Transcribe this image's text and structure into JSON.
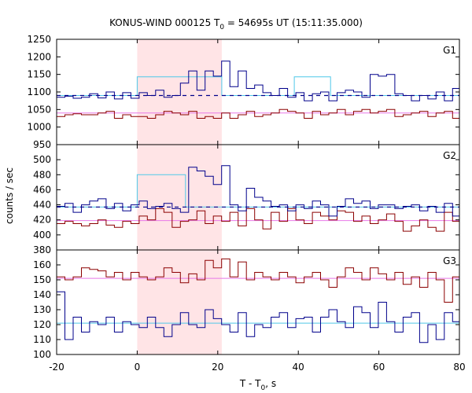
{
  "chart_data": {
    "type": "line",
    "title": "KONUS-WIND 000125 T",
    "title_sub": "0",
    "title_rest": " = 54695s UT (15:11:35.000)",
    "xlabel": "T - T",
    "xlabel_sub": "0",
    "xlabel_rest": ", s",
    "ylabel": "counts / sec",
    "xlim": [
      -20,
      80
    ],
    "x_ticks": [
      "-20",
      "0",
      "20",
      "40",
      "60",
      "80"
    ],
    "x_tick_values": [
      -20,
      0,
      20,
      40,
      60,
      80
    ],
    "highlight_span": [
      0,
      21
    ],
    "colors": {
      "blue": "#00008b",
      "red": "#8b0000",
      "cyan": "#4fc8e8",
      "pink": "#e878e8",
      "highlight": "#ffe4e6"
    },
    "bin_width": 2.048,
    "x_start": -20,
    "panels": [
      {
        "label": "G1",
        "ylim": [
          950,
          1250
        ],
        "y_ticks": [
          "950",
          "1000",
          "1050",
          "1100",
          "1150",
          "1200",
          "1250"
        ],
        "y_tick_values": [
          950,
          1000,
          1050,
          1100,
          1150,
          1200,
          1250
        ],
        "blue": [
          1085,
          1088,
          1082,
          1085,
          1095,
          1083,
          1100,
          1080,
          1098,
          1082,
          1098,
          1090,
          1105,
          1085,
          1090,
          1125,
          1160,
          1105,
          1160,
          1145,
          1188,
          1115,
          1160,
          1110,
          1120,
          1098,
          1090,
          1110,
          1085,
          1098,
          1075,
          1095,
          1100,
          1075,
          1098,
          1105,
          1100,
          1085,
          1150,
          1145,
          1150,
          1095,
          1090,
          1075,
          1090,
          1080,
          1100,
          1075,
          1110,
          1080,
          1098,
          1085,
          1085,
          1095,
          1085,
          1105,
          1075,
          1098,
          1108,
          1080
        ],
        "red": [
          1030,
          1035,
          1038,
          1035,
          1035,
          1040,
          1045,
          1025,
          1035,
          1030,
          1030,
          1025,
          1035,
          1045,
          1040,
          1035,
          1045,
          1025,
          1030,
          1025,
          1040,
          1025,
          1035,
          1045,
          1030,
          1035,
          1040,
          1050,
          1045,
          1040,
          1025,
          1045,
          1035,
          1040,
          1050,
          1035,
          1045,
          1050,
          1040,
          1045,
          1050,
          1030,
          1035,
          1040,
          1045,
          1030,
          1040,
          1045,
          1025,
          1040,
          1045,
          1040,
          1040,
          1045,
          1040,
          1045,
          1040,
          1040,
          1040,
          1040
        ],
        "cyan_steps": [
          {
            "x0": -20,
            "x1": 0,
            "y": 1090
          },
          {
            "x0": 0,
            "x1": 21,
            "y": 1143
          },
          {
            "x0": 21,
            "x1": 39,
            "y": 1090
          },
          {
            "x0": 39,
            "x1": 48,
            "y": 1143
          },
          {
            "x0": 48,
            "x1": 80,
            "y": 1090
          }
        ],
        "blue_dash": 1090,
        "pink_level": 1040
      },
      {
        "label": "G2",
        "ylim": [
          380,
          520
        ],
        "y_ticks": [
          "380",
          "400",
          "420",
          "440",
          "460",
          "480",
          "500"
        ],
        "y_tick_values": [
          380,
          400,
          420,
          440,
          460,
          480,
          500
        ],
        "blue": [
          438,
          442,
          430,
          440,
          445,
          448,
          435,
          442,
          432,
          440,
          445,
          435,
          438,
          442,
          435,
          430,
          490,
          485,
          478,
          467,
          492,
          440,
          432,
          462,
          450,
          445,
          438,
          440,
          432,
          440,
          435,
          445,
          440,
          425,
          438,
          448,
          442,
          445,
          435,
          440,
          440,
          435,
          438,
          440,
          432,
          438,
          430,
          442,
          425,
          440,
          448,
          435,
          440,
          432,
          440,
          445,
          438,
          432,
          448,
          452
        ],
        "red": [
          415,
          418,
          415,
          412,
          415,
          420,
          413,
          410,
          418,
          415,
          425,
          420,
          435,
          430,
          410,
          418,
          420,
          432,
          415,
          425,
          418,
          430,
          412,
          435,
          420,
          408,
          430,
          418,
          435,
          420,
          415,
          430,
          425,
          420,
          432,
          430,
          418,
          425,
          415,
          420,
          428,
          418,
          405,
          412,
          420,
          410,
          405,
          430,
          418,
          392,
          410,
          405,
          410,
          405,
          408,
          410,
          405,
          410,
          405,
          408
        ],
        "cyan_steps": [
          {
            "x0": -20,
            "x1": 0,
            "y": 437
          },
          {
            "x0": 0,
            "x1": 12,
            "y": 480
          },
          {
            "x0": 12,
            "x1": 80,
            "y": 437
          }
        ],
        "blue_dash": 437,
        "pink_level": 419
      },
      {
        "label": "G3",
        "ylim": [
          100,
          170
        ],
        "y_ticks": [
          "100",
          "110",
          "120",
          "130",
          "140",
          "150",
          "160"
        ],
        "y_tick_values": [
          100,
          110,
          120,
          130,
          140,
          150,
          160
        ],
        "blue": [
          142,
          110,
          125,
          115,
          122,
          120,
          125,
          115,
          122,
          120,
          118,
          125,
          118,
          112,
          120,
          128,
          120,
          118,
          130,
          124,
          120,
          115,
          128,
          112,
          120,
          118,
          125,
          128,
          118,
          124,
          125,
          115,
          125,
          130,
          122,
          118,
          132,
          128,
          118,
          135,
          122,
          115,
          125,
          128,
          108,
          120,
          110,
          128,
          122,
          115,
          128,
          120,
          122,
          112,
          130,
          122,
          108,
          125,
          118,
          122
        ],
        "red": [
          152,
          150,
          152,
          158,
          157,
          156,
          152,
          155,
          150,
          155,
          152,
          150,
          152,
          158,
          155,
          148,
          154,
          150,
          163,
          158,
          164,
          152,
          162,
          150,
          155,
          152,
          150,
          155,
          152,
          148,
          152,
          155,
          150,
          145,
          152,
          158,
          155,
          150,
          158,
          154,
          150,
          155,
          147,
          152,
          145,
          155,
          150,
          135,
          152,
          150,
          135,
          152,
          150,
          152,
          150,
          152,
          150,
          155,
          150,
          158
        ],
        "cyan_level": 121,
        "pink_level": 151
      }
    ]
  }
}
